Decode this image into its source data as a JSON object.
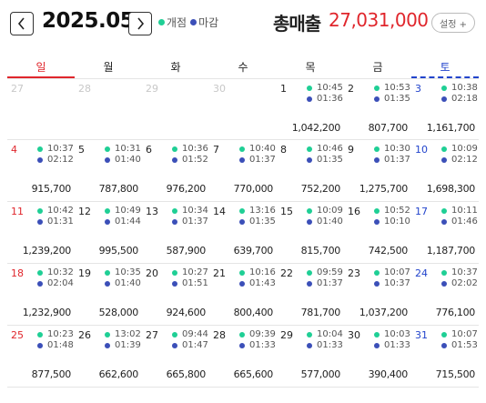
{
  "header": {
    "month": "2025.05",
    "legend": [
      {
        "label": "개점",
        "color": "#1fcf95"
      },
      {
        "label": "마감",
        "color": "#3b4fb8"
      }
    ],
    "total_label": "총매출",
    "total_value": "27,031,000",
    "settings_label": "설정 +"
  },
  "colors": {
    "sunday": "#e0262c",
    "saturday": "#2244cc",
    "open_dot": "#1fcf95",
    "close_dot": "#3b4fb8"
  },
  "weekdays": [
    "일",
    "월",
    "화",
    "수",
    "목",
    "금",
    "토"
  ],
  "weeks": [
    [
      {
        "day": "27",
        "other": true
      },
      {
        "day": "28",
        "other": true
      },
      {
        "day": "29",
        "other": true
      },
      {
        "day": "30",
        "other": true
      },
      {
        "day": "1",
        "open": "10:45",
        "close": "01:36",
        "sales": "1,042,200"
      },
      {
        "day": "2",
        "open": "10:53",
        "close": "01:35",
        "sales": "807,700"
      },
      {
        "day": "3",
        "open": "10:38",
        "close": "02:18",
        "sales": "1,161,700"
      }
    ],
    [
      {
        "day": "4",
        "open": "10:37",
        "close": "02:12",
        "sales": "915,700"
      },
      {
        "day": "5",
        "open": "10:31",
        "close": "01:40",
        "sales": "787,800"
      },
      {
        "day": "6",
        "open": "10:36",
        "close": "01:52",
        "sales": "976,200"
      },
      {
        "day": "7",
        "open": "10:40",
        "close": "01:37",
        "sales": "770,000"
      },
      {
        "day": "8",
        "open": "10:46",
        "close": "01:35",
        "sales": "752,200"
      },
      {
        "day": "9",
        "open": "10:30",
        "close": "01:37",
        "sales": "1,275,700"
      },
      {
        "day": "10",
        "open": "10:09",
        "close": "02:12",
        "sales": "1,698,300"
      }
    ],
    [
      {
        "day": "11",
        "open": "10:42",
        "close": "01:31",
        "sales": "1,239,200"
      },
      {
        "day": "12",
        "open": "10:49",
        "close": "01:44",
        "sales": "995,500"
      },
      {
        "day": "13",
        "open": "10:34",
        "close": "01:37",
        "sales": "587,900"
      },
      {
        "day": "14",
        "open": "13:16",
        "close": "01:35",
        "sales": "639,700"
      },
      {
        "day": "15",
        "open": "10:09",
        "close": "01:40",
        "sales": "815,700"
      },
      {
        "day": "16",
        "open": "10:52",
        "close": "10:10",
        "sales": "742,500"
      },
      {
        "day": "17",
        "open": "10:11",
        "close": "01:46",
        "sales": "1,187,700"
      }
    ],
    [
      {
        "day": "18",
        "open": "10:32",
        "close": "02:04",
        "sales": "1,232,900"
      },
      {
        "day": "19",
        "open": "10:35",
        "close": "01:40",
        "sales": "528,000"
      },
      {
        "day": "20",
        "open": "10:27",
        "close": "01:51",
        "sales": "924,600"
      },
      {
        "day": "21",
        "open": "10:16",
        "close": "01:43",
        "sales": "800,400"
      },
      {
        "day": "22",
        "open": "09:59",
        "close": "01:37",
        "sales": "781,700"
      },
      {
        "day": "23",
        "open": "10:07",
        "close": "10:37",
        "sales": "1,037,200"
      },
      {
        "day": "24",
        "open": "10:37",
        "close": "02:02",
        "sales": "776,100"
      }
    ],
    [
      {
        "day": "25",
        "open": "10:23",
        "close": "01:48",
        "sales": "877,500"
      },
      {
        "day": "26",
        "open": "13:02",
        "close": "01:39",
        "sales": "662,600"
      },
      {
        "day": "27",
        "open": "09:44",
        "close": "01:47",
        "sales": "665,800"
      },
      {
        "day": "28",
        "open": "09:39",
        "close": "01:33",
        "sales": "665,600"
      },
      {
        "day": "29",
        "open": "10:04",
        "close": "01:33",
        "sales": "577,000"
      },
      {
        "day": "30",
        "open": "10:03",
        "close": "01:33",
        "sales": "390,400"
      },
      {
        "day": "31",
        "open": "10:07",
        "close": "01:53",
        "sales": "715,500"
      }
    ]
  ]
}
